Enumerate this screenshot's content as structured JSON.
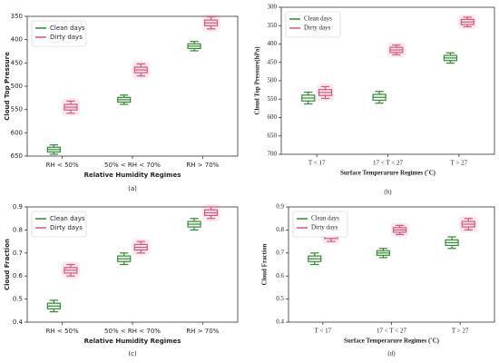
{
  "chart_data": [
    {
      "type": "box",
      "label": "(a)",
      "ylabel": "Cloud Top Pressure",
      "xlabel": "Relative Humidity Regimes",
      "categories": [
        "RH < 50%",
        "50% < RH < 70%",
        "RH > 70%"
      ],
      "ylim": [
        650,
        350
      ],
      "yticks": [
        350,
        400,
        450,
        500,
        550,
        600,
        650
      ],
      "legend": "upper left",
      "series": [
        {
          "name": "Clean days",
          "color": "#2e8b2e",
          "min": [
            626,
            519,
            404
          ],
          "q1": [
            631,
            524,
            409
          ],
          "median": [
            636,
            529,
            414
          ],
          "q3": [
            641,
            534,
            419
          ],
          "max": [
            646,
            539,
            424
          ]
        },
        {
          "name": "Dirty days",
          "color": "#e0507a",
          "min": [
            532,
            452,
            351
          ],
          "q1": [
            539,
            459,
            358
          ],
          "median": [
            545,
            465,
            364
          ],
          "q3": [
            551,
            471,
            370
          ],
          "max": [
            558,
            478,
            377
          ]
        }
      ]
    },
    {
      "type": "box",
      "label": "(b)",
      "ylabel": "Cloud Top Pressure(hPa)",
      "xlabel": "Surface Temperarure Regimes (˚C)",
      "categories": [
        "T < 17",
        "17 < T < 27",
        "T > 27"
      ],
      "ylim": [
        700,
        300
      ],
      "yticks": [
        300,
        350,
        400,
        450,
        500,
        550,
        600,
        650,
        700
      ],
      "legend": "upper left",
      "series": [
        {
          "name": "Clean days",
          "color": "#2e8b2e",
          "min": [
            531,
            529,
            424
          ],
          "q1": [
            539,
            537,
            431
          ],
          "median": [
            547,
            545,
            438
          ],
          "q3": [
            555,
            553,
            445
          ],
          "max": [
            563,
            561,
            452
          ]
        },
        {
          "name": "Dirty days",
          "color": "#e0507a",
          "min": [
            516,
            403,
            327
          ],
          "q1": [
            524,
            409,
            333
          ],
          "median": [
            532,
            416,
            340
          ],
          "q3": [
            540,
            423,
            347
          ],
          "max": [
            548,
            429,
            353
          ]
        }
      ]
    },
    {
      "type": "box",
      "label": "(c)",
      "ylabel": "Cloud Fraction",
      "xlabel": "Relative Humidity Regimes",
      "categories": [
        "RH < 50%",
        "50% < RH < 70%",
        "RH > 70%"
      ],
      "ylim": [
        0.4,
        0.9
      ],
      "yticks": [
        0.4,
        0.5,
        0.6,
        0.7,
        0.8,
        0.9
      ],
      "legend": "upper left",
      "series": [
        {
          "name": "Clean days",
          "color": "#2e8b2e",
          "min": [
            0.445,
            0.65,
            0.8
          ],
          "q1": [
            0.458,
            0.663,
            0.813
          ],
          "median": [
            0.47,
            0.675,
            0.825
          ],
          "q3": [
            0.482,
            0.687,
            0.837
          ],
          "max": [
            0.495,
            0.7,
            0.85
          ]
        },
        {
          "name": "Dirty days",
          "color": "#e0507a",
          "min": [
            0.6,
            0.7,
            0.85
          ],
          "q1": [
            0.613,
            0.713,
            0.863
          ],
          "median": [
            0.625,
            0.725,
            0.875
          ],
          "q3": [
            0.637,
            0.737,
            0.887
          ],
          "max": [
            0.65,
            0.75,
            0.9
          ]
        }
      ]
    },
    {
      "type": "box",
      "label": "(d)",
      "ylabel": "Cloud Fraction",
      "xlabel": "Surface Temperarure Regimes (˚C)",
      "categories": [
        "T < 17",
        "17 < T < 27",
        "T > 27"
      ],
      "ylim": [
        0.4,
        0.9
      ],
      "yticks": [
        0.4,
        0.5,
        0.6,
        0.7,
        0.8,
        0.9
      ],
      "legend": "upper left",
      "series": [
        {
          "name": "Clean days",
          "color": "#2e8b2e",
          "min": [
            0.65,
            0.68,
            0.72
          ],
          "q1": [
            0.663,
            0.69,
            0.733
          ],
          "median": [
            0.675,
            0.7,
            0.745
          ],
          "q3": [
            0.687,
            0.71,
            0.757
          ],
          "max": [
            0.7,
            0.72,
            0.77
          ]
        },
        {
          "name": "Dirty days",
          "color": "#e0507a",
          "min": [
            0.75,
            0.78,
            0.8
          ],
          "q1": [
            0.763,
            0.79,
            0.813
          ],
          "median": [
            0.775,
            0.8,
            0.825
          ],
          "q3": [
            0.787,
            0.81,
            0.837
          ],
          "max": [
            0.8,
            0.82,
            0.85
          ]
        }
      ]
    }
  ]
}
